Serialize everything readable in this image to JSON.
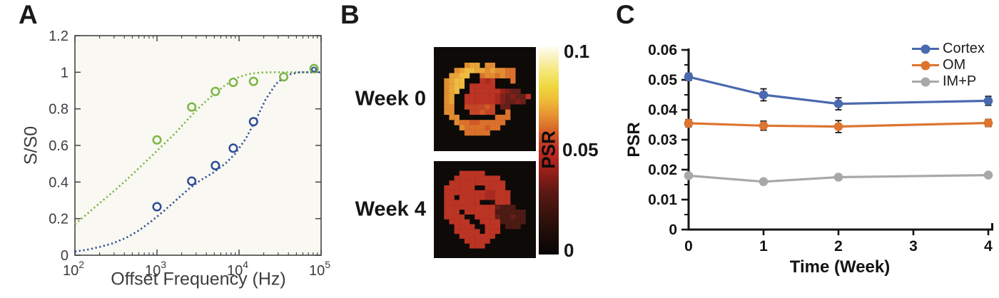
{
  "panels": {
    "a": {
      "label": "A",
      "xlabel": "Offset Frequency (Hz)",
      "ylabel": "S/S0"
    },
    "b": {
      "label": "B",
      "week0_label": "Week 0",
      "week4_label": "Week 4",
      "colorbar": {
        "label": "PSR",
        "ticks": [
          "0.1",
          "0.05",
          "0"
        ],
        "gradient_stops": [
          [
            0.0,
            "#060404"
          ],
          [
            0.1,
            "#1d0d09"
          ],
          [
            0.2,
            "#3a130e"
          ],
          [
            0.3,
            "#5d1813"
          ],
          [
            0.38,
            "#8c1d18"
          ],
          [
            0.45,
            "#b02420"
          ],
          [
            0.5,
            "#bf2d22"
          ],
          [
            0.56,
            "#cc4d26"
          ],
          [
            0.62,
            "#dd742c"
          ],
          [
            0.68,
            "#e89a33"
          ],
          [
            0.74,
            "#eebd38"
          ],
          [
            0.8,
            "#f0d53e"
          ],
          [
            0.86,
            "#f3e468"
          ],
          [
            0.93,
            "#f8f0b0"
          ],
          [
            1.0,
            "#fffef8"
          ]
        ]
      }
    },
    "c": {
      "label": "C",
      "xlabel": "Time (Week)",
      "ylabel": "PSR"
    }
  },
  "chart_data": [
    {
      "panel": "A",
      "type": "scatter",
      "xlabel": "Offset Frequency (Hz)",
      "ylabel": "S/S0",
      "xscale": "log",
      "xlim": [
        100,
        100000
      ],
      "ylim": [
        0,
        1.2
      ],
      "xtick_exponents": [
        2,
        3,
        4,
        5
      ],
      "ytick_values": [
        0,
        0.2,
        0.4,
        0.6,
        0.8,
        1,
        1.2
      ],
      "ytick_labels": [
        "0",
        "0.2",
        "0.4",
        "0.6",
        "0.8",
        "1",
        "1.2"
      ],
      "grid": false,
      "plot_bg": "#f9f8f2",
      "series": [
        {
          "name": "green-fit-curve",
          "color": "#79b645",
          "style": "dotted-line",
          "points": [
            [
              100,
              0.17
            ],
            [
              140,
              0.225
            ],
            [
              200,
              0.285
            ],
            [
              290,
              0.345
            ],
            [
              420,
              0.41
            ],
            [
              600,
              0.475
            ],
            [
              850,
              0.54
            ],
            [
              1200,
              0.605
            ],
            [
              1700,
              0.67
            ],
            [
              2400,
              0.745
            ],
            [
              3400,
              0.815
            ],
            [
              4800,
              0.875
            ],
            [
              6800,
              0.93
            ],
            [
              9500,
              0.97
            ],
            [
              13000,
              0.99
            ],
            [
              18000,
              0.998
            ],
            [
              25000,
              1.0
            ],
            [
              100000,
              1.0
            ]
          ]
        },
        {
          "name": "blue-fit-curve",
          "color": "#2d4d9b",
          "style": "dotted-line",
          "points": [
            [
              100,
              0.02
            ],
            [
              140,
              0.03
            ],
            [
              200,
              0.045
            ],
            [
              290,
              0.065
            ],
            [
              420,
              0.095
            ],
            [
              600,
              0.135
            ],
            [
              850,
              0.185
            ],
            [
              1200,
              0.24
            ],
            [
              1700,
              0.3
            ],
            [
              2400,
              0.36
            ],
            [
              3400,
              0.41
            ],
            [
              4800,
              0.45
            ],
            [
              6800,
              0.5
            ],
            [
              9000,
              0.555
            ],
            [
              12000,
              0.635
            ],
            [
              16000,
              0.74
            ],
            [
              21000,
              0.85
            ],
            [
              28000,
              0.935
            ],
            [
              38000,
              0.985
            ],
            [
              55000,
              1.0
            ],
            [
              100000,
              1.0
            ]
          ]
        },
        {
          "name": "green-data",
          "color": "#79b645",
          "style": "open-circle",
          "x": [
            1000,
            2650,
            5150,
            8500,
            15000,
            35000,
            82000
          ],
          "y": [
            0.63,
            0.81,
            0.895,
            0.945,
            0.95,
            0.975,
            1.02
          ]
        },
        {
          "name": "blue-data",
          "color": "#2d4d9b",
          "style": "open-circle",
          "x": [
            1000,
            2650,
            5150,
            8500,
            15000,
            82000
          ],
          "y": [
            0.265,
            0.405,
            0.49,
            0.585,
            0.73,
            1.015
          ]
        }
      ]
    },
    {
      "panel": "C",
      "type": "line",
      "xlabel": "Time (Week)",
      "ylabel": "PSR",
      "xlim": [
        0,
        4
      ],
      "ylim": [
        0,
        0.06
      ],
      "xticks": [
        0,
        1,
        2,
        3,
        4
      ],
      "ytick_values": [
        0,
        0.01,
        0.02,
        0.03,
        0.04,
        0.05,
        0.06
      ],
      "ytick_labels": [
        "0",
        "0.01",
        "0.02",
        "0.03",
        "0.04",
        "0.05",
        "0.06"
      ],
      "yminor_step": 0.005,
      "grid": false,
      "legend_position": "top-right",
      "series": [
        {
          "name": "Cortex",
          "color": "#4a69ae",
          "x": [
            0,
            1,
            2,
            4
          ],
          "y": [
            0.051,
            0.045,
            0.042,
            0.043
          ],
          "yerr": [
            0.0012,
            0.002,
            0.002,
            0.0015
          ]
        },
        {
          "name": "OM",
          "color": "#dd7530",
          "x": [
            0,
            1,
            2,
            4
          ],
          "y": [
            0.0355,
            0.0347,
            0.0344,
            0.0356
          ],
          "yerr": [
            0.0012,
            0.0015,
            0.002,
            0.0012
          ]
        },
        {
          "name": "IM+P",
          "color": "#a8a8a8",
          "x": [
            0,
            1,
            2,
            4
          ],
          "y": [
            0.018,
            0.016,
            0.0175,
            0.0182
          ],
          "yerr": [
            0.0008,
            0.0008,
            0.0008,
            0.0008
          ]
        }
      ]
    },
    {
      "panel": "B",
      "type": "heatmap",
      "value_label": "PSR",
      "value_range": [
        0,
        0.1
      ],
      "palette": {
        "0": "#0d0a08",
        "1": "#240f0b",
        "2": "#3a140e",
        "3": "#4d1a14",
        "4": "#66201a",
        "5": "#842019",
        "6": "#9a241d",
        "7": "#ab2a20",
        "8": "#bb3424",
        "9": "#c64526",
        "a": "#d05a28",
        "b": "#da712c",
        "c": "#e28c31",
        "d": "#e9a438",
        "e": "#efbc41",
        "f": "#f4d765"
      },
      "week0_rows": [
        "00000000000000000000",
        "00000000000000000000",
        "00000000000000000000",
        "000000cdd0cc00000000",
        "0000cdeeddcdccbb0000",
        "000ddee00bccbcbb0000",
        "00cdee000878000b0000",
        "00cdee08888800000000",
        "00cde008888886544000",
        "00cd0088888875454480",
        "00cd0088888875445400",
        "00cc009999a904400000",
        "00cc00099a9900b00000",
        "000cc0000000bbb00000",
        "0000cbbaabbbbb000000",
        "00000cbbbbabb0000000",
        "000000bbbbb000000000",
        "00000000000000000000",
        "00000000000000000000",
        "00000000000000000000"
      ],
      "week4_rows": [
        "00000000000000000000",
        "00000000000000000000",
        "00000888880000000000",
        "00008888888880000000",
        "00088888888888000000",
        "00888888008888000000",
        "00888888887788800000",
        "00880888887788800000",
        "00888888800188800000",
        "00888888888843330000",
        "00888088888833333300",
        "00888800888843343300",
        "00088880088883333300",
        "00008888008880333000",
        "00008888808880000000",
        "00000888888800000000",
        "00000088888000000000",
        "00000008880000000000",
        "00000000000000000000",
        "00000000000000000000"
      ]
    }
  ]
}
